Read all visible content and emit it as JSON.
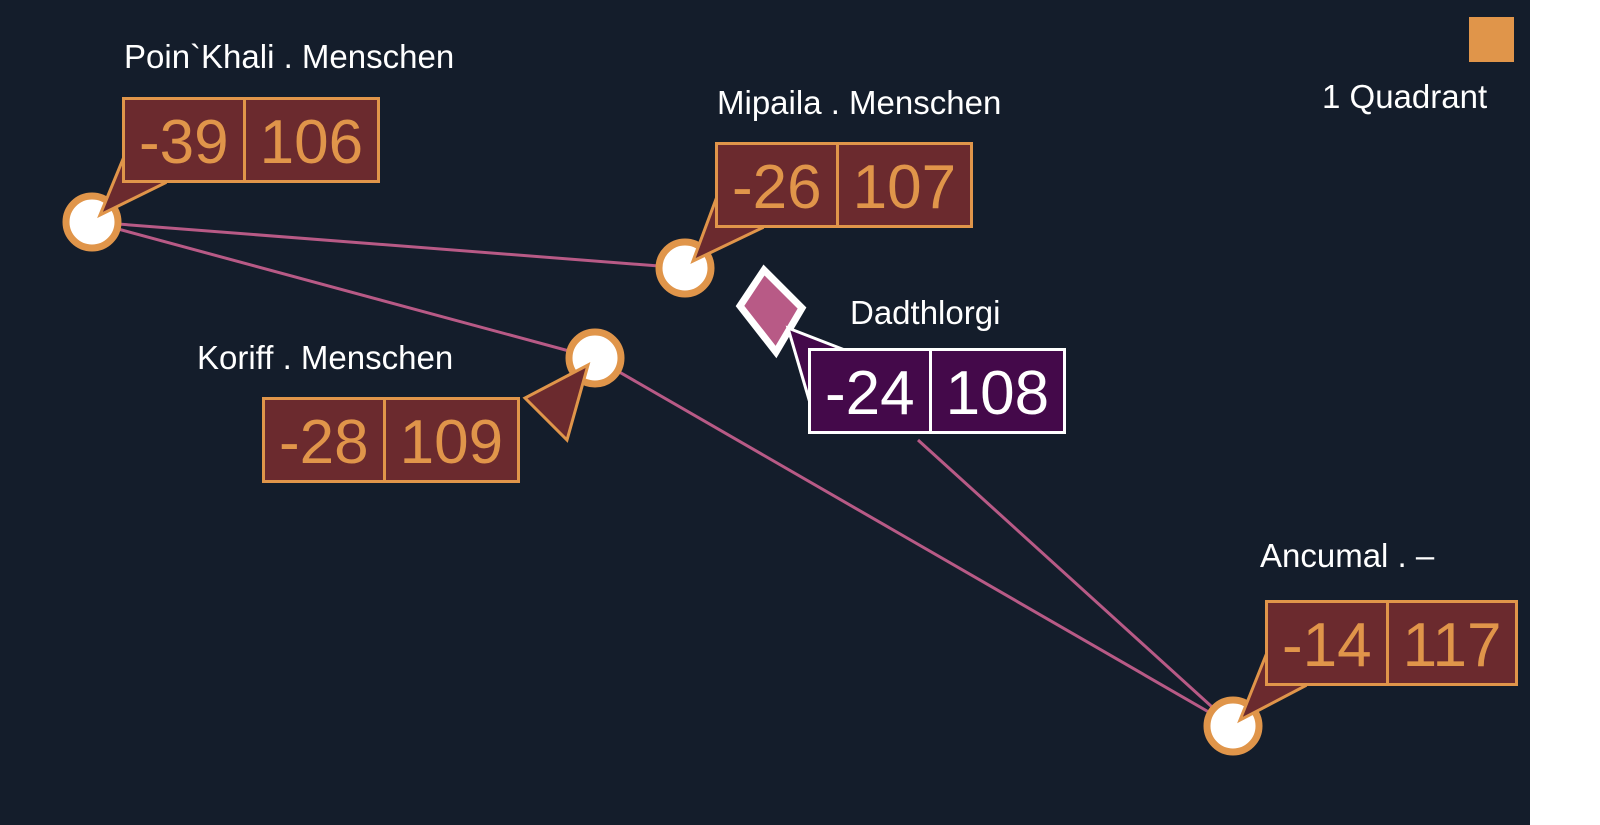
{
  "legend": {
    "label": "1 Quadrant",
    "color": "#e0954a"
  },
  "colors": {
    "background": "#141d2b",
    "link": "#b85a86",
    "node_border": "#e0954a",
    "label_fill": "#6b2a2e",
    "selected_fill": "#44094a",
    "selected_marker": "#b85a86"
  },
  "systems": [
    {
      "name": "Poin`Khali . Menschen",
      "x": "-39",
      "y": "106",
      "selected": false
    },
    {
      "name": "Mipaila . Menschen",
      "x": "-26",
      "y": "107",
      "selected": false
    },
    {
      "name": "Koriff . Menschen",
      "x": "-28",
      "y": "109",
      "selected": false
    },
    {
      "name": "Dadthlorgi",
      "x": "-24",
      "y": "108",
      "selected": true
    },
    {
      "name": "Ancumal . –",
      "x": "-14",
      "y": "117",
      "selected": false
    }
  ]
}
